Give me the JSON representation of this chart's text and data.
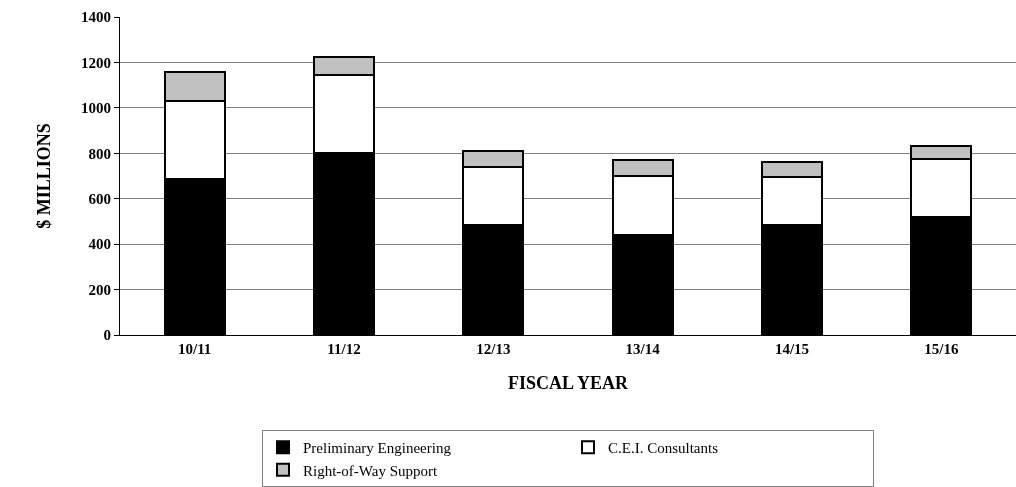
{
  "chart_data": {
    "type": "bar",
    "stacked": true,
    "xlabel": "FISCAL YEAR",
    "ylabel": "$ MILLIONS",
    "categories": [
      "10/11",
      "11/12",
      "12/13",
      "13/14",
      "14/15",
      "15/16"
    ],
    "series": [
      {
        "name": "Preliminary Engineering",
        "color": "#000000",
        "values": [
          685,
          800,
          485,
          440,
          485,
          520
        ]
      },
      {
        "name": "C.E.I. Consultants",
        "color": "#ffffff",
        "values": [
          345,
          345,
          255,
          260,
          210,
          255
        ]
      },
      {
        "name": "Right-of-Way Support",
        "color": "#c0c0c0",
        "values": [
          130,
          80,
          70,
          70,
          65,
          55
        ]
      }
    ],
    "ylim": [
      0,
      1400
    ],
    "yticks": [
      0,
      200,
      400,
      600,
      800,
      1000,
      1200,
      1400
    ],
    "grid": "y",
    "legend": "bottom"
  }
}
